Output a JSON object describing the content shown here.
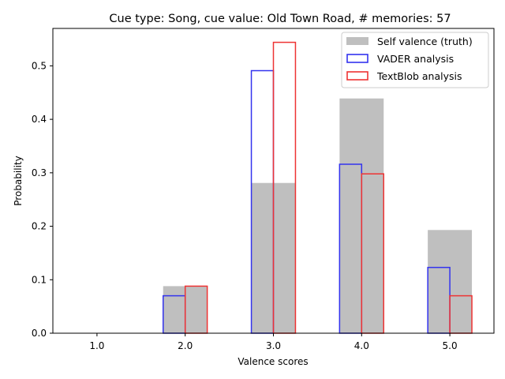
{
  "chart_data": {
    "type": "bar",
    "title": "Cue type: Song, cue value: Old Town Road, # memories: 57",
    "xlabel": "Valence scores",
    "ylabel": "Probability",
    "x": [
      1.0,
      2.0,
      3.0,
      4.0,
      5.0
    ],
    "xticks": [
      "1.0",
      "2.0",
      "3.0",
      "4.0",
      "5.0"
    ],
    "yticks": [
      "0.0",
      "0.1",
      "0.2",
      "0.3",
      "0.4",
      "0.5"
    ],
    "xlim": [
      0.5,
      5.5
    ],
    "ylim": [
      0,
      0.57
    ],
    "grid": false,
    "legend_position": "upper right",
    "series": [
      {
        "name": "Self valence (truth)",
        "style": "filled",
        "color": "#bfbfbf",
        "values": [
          0.0,
          0.088,
          0.281,
          0.439,
          0.193
        ]
      },
      {
        "name": "VADER analysis",
        "style": "outline",
        "color": "#3333ee",
        "values": [
          0.0,
          0.07,
          0.491,
          0.316,
          0.123
        ]
      },
      {
        "name": "TextBlob analysis",
        "style": "outline",
        "color": "#ee3333",
        "values": [
          0.0,
          0.088,
          0.544,
          0.298,
          0.07
        ]
      }
    ]
  }
}
